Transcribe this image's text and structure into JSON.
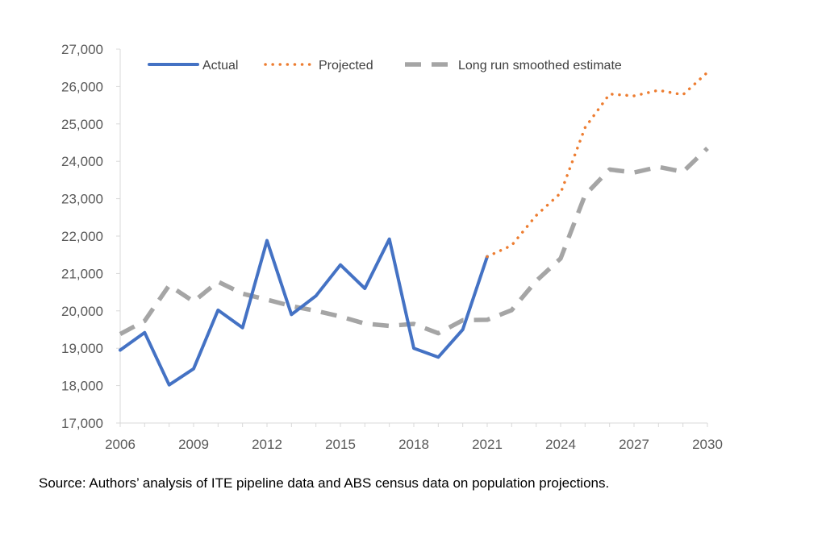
{
  "chart_data": {
    "type": "line",
    "title": "",
    "xlabel": "",
    "ylabel": "",
    "xlim": [
      2006,
      2030
    ],
    "ylim": [
      17000,
      27000
    ],
    "x_ticks": [
      2006,
      2009,
      2012,
      2015,
      2018,
      2021,
      2024,
      2027,
      2030
    ],
    "x_tick_labels": [
      "2006",
      "2009",
      "2012",
      "2015",
      "2018",
      "2021",
      "2024",
      "2027",
      "2030"
    ],
    "y_ticks": [
      17000,
      18000,
      19000,
      20000,
      21000,
      22000,
      23000,
      24000,
      25000,
      26000,
      27000
    ],
    "y_tick_labels": [
      "17,000",
      "18,000",
      "19,000",
      "20,000",
      "21,000",
      "22,000",
      "23,000",
      "24,000",
      "25,000",
      "26,000",
      "27,000"
    ],
    "grid": false,
    "legend_position": "top",
    "series": [
      {
        "name": "Actual",
        "style": "solid",
        "color": "#4472C4",
        "x": [
          2006,
          2007,
          2008,
          2009,
          2010,
          2011,
          2012,
          2013,
          2014,
          2015,
          2016,
          2017,
          2018,
          2019,
          2020,
          2021
        ],
        "y": [
          18950,
          19420,
          18020,
          18450,
          20020,
          19550,
          21880,
          19900,
          20400,
          21230,
          20600,
          21920,
          19000,
          18760,
          19500,
          21450
        ]
      },
      {
        "name": "Projected",
        "style": "dotted",
        "color": "#ED7D31",
        "x": [
          2021,
          2022,
          2023,
          2024,
          2025,
          2026,
          2027,
          2028,
          2029,
          2030
        ],
        "y": [
          21450,
          21750,
          22550,
          23150,
          24900,
          25800,
          25750,
          25900,
          25780,
          26380
        ]
      },
      {
        "name": "Long run smoothed estimate",
        "style": "dashed",
        "color": "#A5A5A5",
        "x": [
          2006,
          2007,
          2008,
          2009,
          2010,
          2011,
          2012,
          2013,
          2014,
          2015,
          2016,
          2017,
          2018,
          2019,
          2020,
          2021,
          2022,
          2023,
          2024,
          2025,
          2026,
          2027,
          2028,
          2029,
          2030
        ],
        "y": [
          19380,
          19730,
          20680,
          20250,
          20780,
          20460,
          20300,
          20130,
          20000,
          19850,
          19660,
          19600,
          19650,
          19400,
          19750,
          19760,
          20020,
          20800,
          21400,
          23100,
          23780,
          23700,
          23850,
          23720,
          24350
        ]
      }
    ]
  },
  "source_text": "Source: Authors’ analysis of ITE pipeline data and ABS census data on population projections."
}
